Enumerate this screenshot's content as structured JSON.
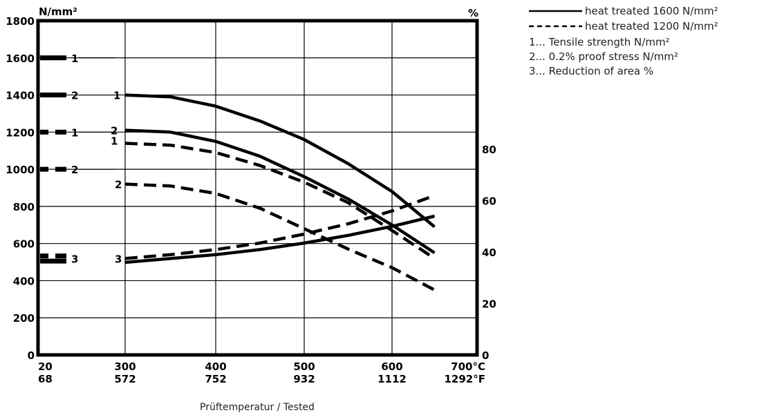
{
  "chart_data": {
    "type": "line",
    "left_unit": "N/mm²",
    "right_unit": "%",
    "xlabel": "Prüftemperatur / Tested",
    "x_ticks": [
      {
        "c": "20",
        "f": "68"
      },
      {
        "c": "300",
        "f": "572"
      },
      {
        "c": "400",
        "f": "752"
      },
      {
        "c": "500",
        "f": "932"
      },
      {
        "c": "600",
        "f": "1112"
      },
      {
        "c": "700°C",
        "f": "1292°F"
      }
    ],
    "y_left_ticks": [
      "0",
      "200",
      "400",
      "600",
      "800",
      "1000",
      "1200",
      "1400",
      "1600",
      "1800"
    ],
    "y_right_ticks": [
      "0",
      "20",
      "40",
      "60",
      "80"
    ],
    "ylim_left": [
      0,
      1800
    ],
    "ylim_right": [
      0,
      130
    ],
    "legend": {
      "solid": "heat treated 1600 N/mm²",
      "dashed": "heat treated 1200 N/mm²",
      "key1": "1... Tensile strength N/mm²",
      "key2": "2... 0.2% proof stress N/mm²",
      "key3": "3... Reduction of area %"
    },
    "room_temp_labels": [
      "1",
      "2",
      "1",
      "2",
      "3"
    ],
    "curve_labels": [
      "1",
      "2",
      "1",
      "2",
      "3"
    ],
    "series": [
      {
        "curve": "1",
        "style": "solid",
        "axis": "left",
        "x": [
          300,
          350,
          400,
          450,
          500,
          550,
          600,
          650
        ],
        "y": [
          1400,
          1390,
          1340,
          1260,
          1160,
          1030,
          880,
          690
        ]
      },
      {
        "curve": "2",
        "style": "solid",
        "axis": "left",
        "x": [
          300,
          350,
          400,
          450,
          500,
          550,
          600,
          650
        ],
        "y": [
          1210,
          1200,
          1150,
          1070,
          960,
          840,
          700,
          550
        ]
      },
      {
        "curve": "1",
        "style": "dashed",
        "axis": "left",
        "x": [
          300,
          350,
          400,
          450,
          500,
          550,
          600,
          650
        ],
        "y": [
          1140,
          1130,
          1090,
          1020,
          930,
          820,
          670,
          520
        ]
      },
      {
        "curve": "2",
        "style": "dashed",
        "axis": "left",
        "x": [
          300,
          350,
          400,
          450,
          500,
          550,
          600,
          650
        ],
        "y": [
          920,
          910,
          870,
          790,
          680,
          570,
          470,
          350
        ]
      },
      {
        "curve": "3",
        "style": "solid",
        "axis": "right",
        "x": [
          300,
          350,
          400,
          450,
          500,
          550,
          600,
          650
        ],
        "y": [
          36,
          37.5,
          39,
          41,
          43.5,
          46.5,
          50,
          54
        ]
      },
      {
        "curve": "3",
        "style": "dashed",
        "axis": "right",
        "x": [
          300,
          350,
          400,
          450,
          500,
          550,
          600,
          650
        ],
        "y": [
          37.5,
          39,
          41,
          43.5,
          47,
          51,
          56,
          62
        ]
      }
    ],
    "room_temp_values": [
      {
        "label": "1",
        "style": "solid",
        "axis": "left",
        "y": 1600
      },
      {
        "label": "2",
        "style": "solid",
        "axis": "left",
        "y": 1400
      },
      {
        "label": "1",
        "style": "dashed",
        "axis": "left",
        "y": 1200
      },
      {
        "label": "2",
        "style": "dashed",
        "axis": "left",
        "y": 1000
      },
      {
        "label": "3",
        "style": "solid",
        "axis": "right",
        "y": 36.5
      },
      {
        "label": "3",
        "style": "dashed",
        "axis": "right",
        "y": 38.5
      }
    ],
    "grid": true
  }
}
